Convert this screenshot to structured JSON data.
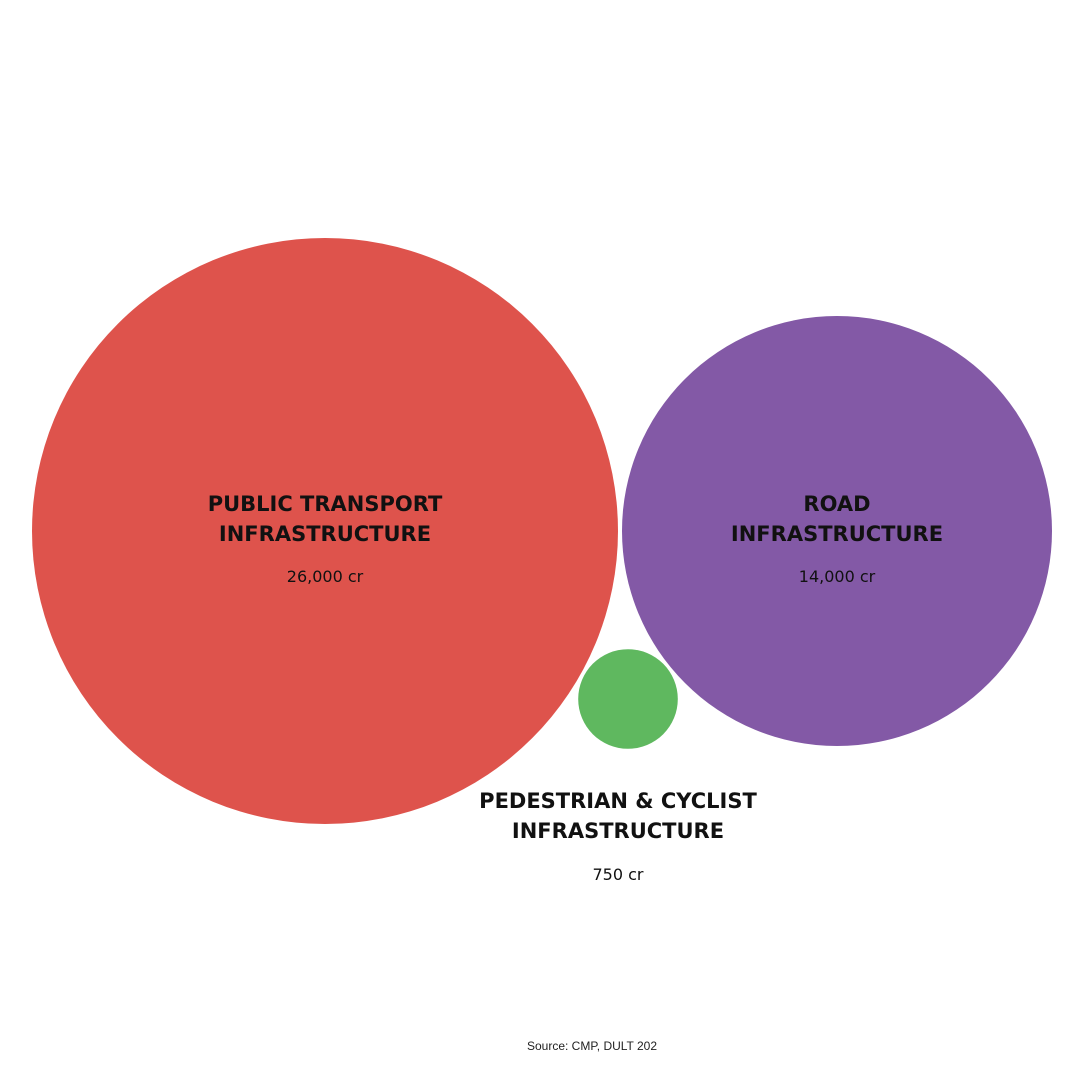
{
  "chart_data": {
    "type": "bubble",
    "unit": "cr",
    "items": [
      {
        "key": "public-transport",
        "label_lines": [
          "PUBLIC TRANSPORT",
          "INFRASTRUCTURE"
        ],
        "value": 26000,
        "value_label": "26,000 cr",
        "color": "#DE534C"
      },
      {
        "key": "road",
        "label_lines": [
          "ROAD",
          "INFRASTRUCTURE"
        ],
        "value": 14000,
        "value_label": "14,000 cr",
        "color": "#8359A6"
      },
      {
        "key": "pedestrian-cyclist",
        "label_lines": [
          "PEDESTRIAN & CYCLIST",
          "INFRASTRUCTURE"
        ],
        "value": 750,
        "value_label": "750 cr",
        "color": "#5FB85F"
      }
    ]
  },
  "source": "Source: CMP, DULT 202"
}
